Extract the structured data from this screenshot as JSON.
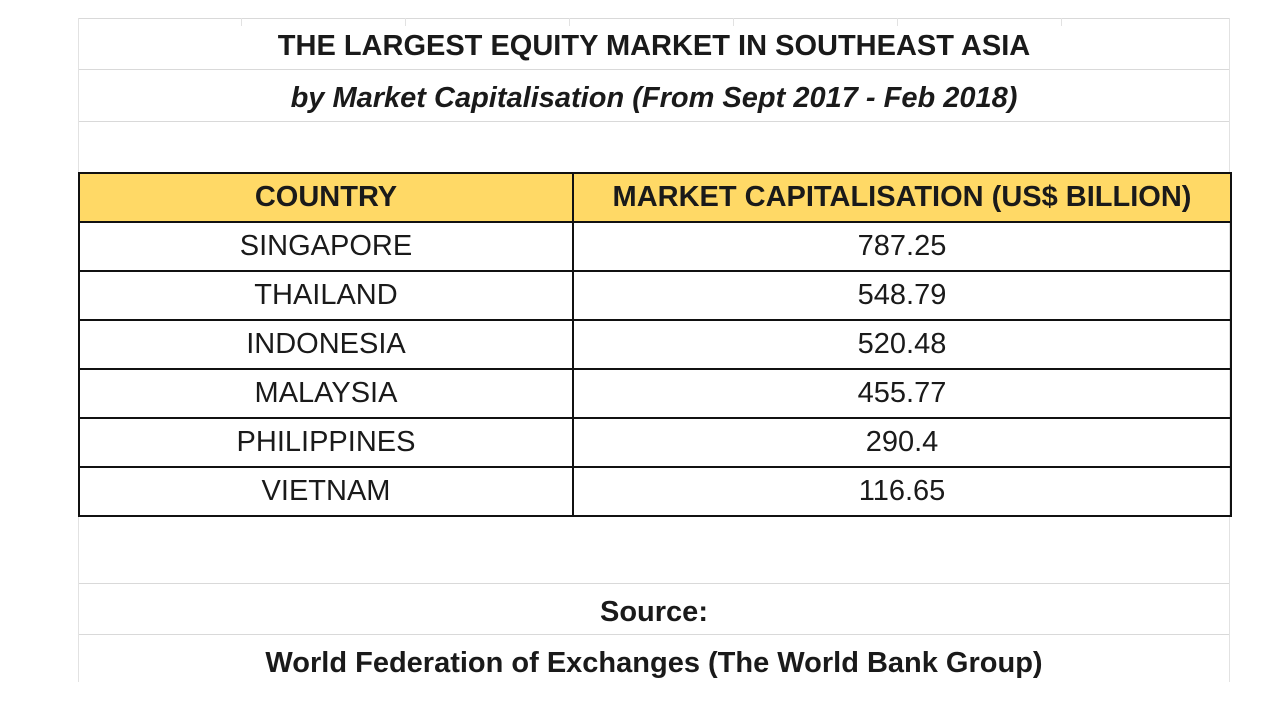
{
  "sheet": {
    "title": "THE LARGEST EQUITY MARKET IN SOUTHEAST ASIA",
    "subtitle": "by Market Capitalisation (From Sept 2017 - Feb 2018)",
    "table": {
      "headers": [
        "COUNTRY",
        "MARKET CAPITALISATION (US$ BILLION)"
      ],
      "rows": [
        {
          "country": "SINGAPORE",
          "value": "787.25"
        },
        {
          "country": "THAILAND",
          "value": "548.79"
        },
        {
          "country": "INDONESIA",
          "value": "520.48"
        },
        {
          "country": "MALAYSIA",
          "value": "455.77"
        },
        {
          "country": "PHILIPPINES",
          "value": "290.4"
        },
        {
          "country": "VIETNAM",
          "value": "116.65"
        }
      ]
    },
    "source_label": "Source:",
    "source_text": "World Federation of Exchanges (The World Bank Group)"
  },
  "colors": {
    "header_fill": "#ffd966",
    "border": "#111111",
    "gridline": "#d9d9d9"
  }
}
